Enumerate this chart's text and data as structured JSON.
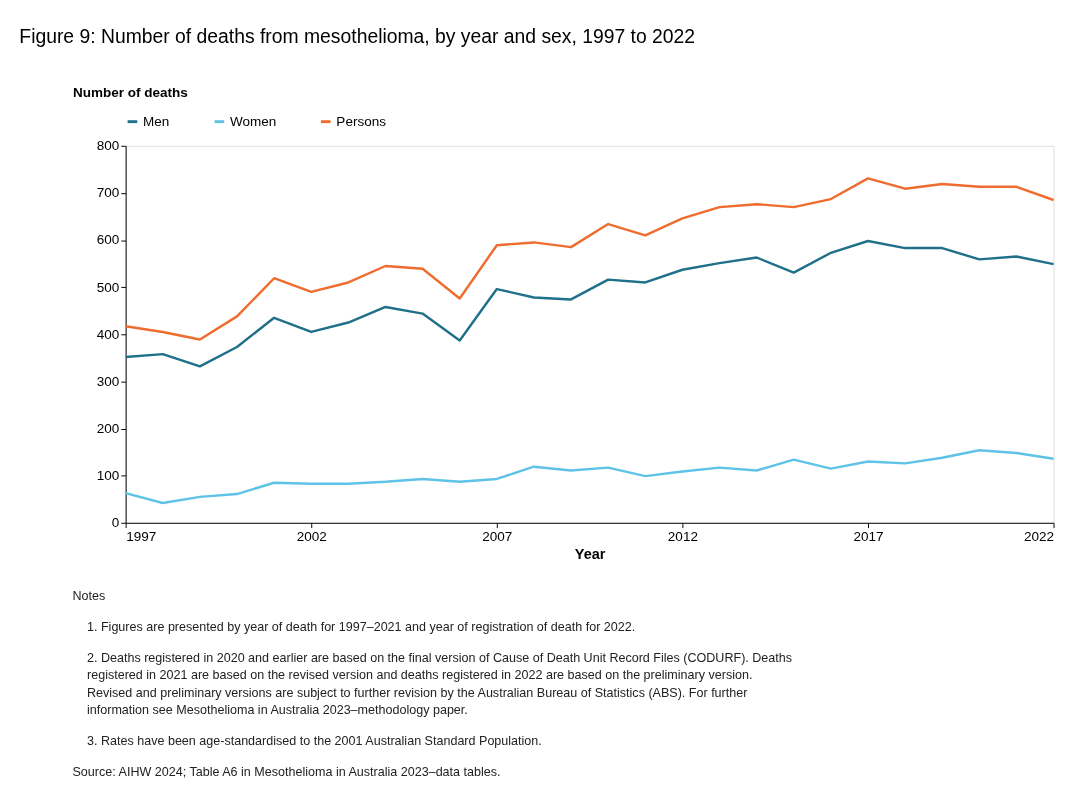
{
  "chart_data": {
    "type": "line",
    "title": "Figure 9: Number of deaths from mesothelioma, by year and sex, 1997 to 2022",
    "xlabel": "Year",
    "ylabel": "Number of deaths",
    "x": [
      1997,
      1998,
      1999,
      2000,
      2001,
      2002,
      2003,
      2004,
      2005,
      2006,
      2007,
      2008,
      2009,
      2010,
      2011,
      2012,
      2013,
      2014,
      2015,
      2016,
      2017,
      2018,
      2019,
      2020,
      2021,
      2022
    ],
    "series": [
      {
        "name": "Men",
        "color": "#1f7089",
        "values": [
          352,
          358,
          332,
          373,
          435,
          405,
          425,
          458,
          444,
          387,
          496,
          478,
          474,
          516,
          510,
          537,
          551,
          563,
          531,
          573,
          598,
          583,
          583,
          559,
          565,
          549
        ]
      },
      {
        "name": "Women",
        "color": "#5ec3e6",
        "values": [
          63,
          42,
          55,
          61,
          85,
          83,
          83,
          87,
          93,
          87,
          93,
          119,
          111,
          117,
          99,
          109,
          117,
          111,
          134,
          115,
          130,
          126,
          138,
          154,
          148,
          136
        ]
      },
      {
        "name": "Persons",
        "color": "#ee6c2d",
        "values": [
          417,
          405,
          389,
          438,
          519,
          490,
          510,
          545,
          539,
          476,
          589,
          595,
          585,
          634,
          610,
          646,
          670,
          676,
          670,
          687,
          731,
          709,
          719,
          713,
          713,
          685
        ]
      }
    ],
    "xlim": [
      1997,
      2022
    ],
    "xticks": [
      1997,
      2002,
      2007,
      2012,
      2017,
      2022
    ],
    "ylim": [
      0,
      800
    ],
    "yticks": [
      0,
      100,
      200,
      300,
      400,
      500,
      600,
      700,
      800
    ],
    "grid": false,
    "legend": "top",
    "marker": "none",
    "line_style": "solid",
    "annotations": [
      "Notes",
      "1.  Figures are presented by year of death for 1997–2021 and year of registration of death for 2022.",
      "2.  Deaths registered in 2020 and earlier are based on the final version of Cause of Death Unit Record Files (CODURF). Deaths registered in 2021 are based on the revised version and deaths registered in 2022 are based on the preliminary version. Revised and preliminary versions are subject to further revision by the Australian Bureau of Statistics (ABS). For further information see Mesothelioma in Australia 2023–methodology paper.",
      "3.  Rates have been age-standardised to the 2001 Australian Standard Population.",
      "Source: AIHW 2024; Table A6 in Mesothelioma in Australia 2023–data tables."
    ]
  }
}
